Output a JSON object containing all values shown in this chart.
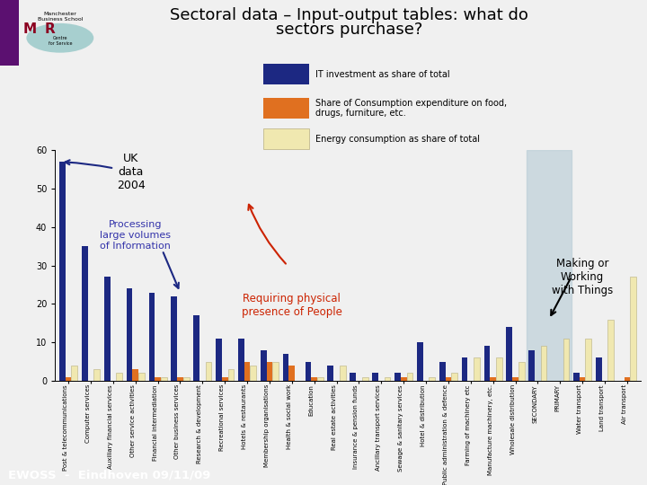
{
  "title_line1": "Sectoral data – Input-output tables: what do",
  "title_line2": "sectors purchase?",
  "categories": [
    "Post & telecommunications",
    "Computer services",
    "Auxiliary financial services",
    "Other service activities",
    "Financial intermediation",
    "Other business services",
    "Research & development",
    "Recreational services",
    "Hotels & restaurants",
    "Membership organisations",
    "Health & social work",
    "Education",
    "Real estate activities",
    "Insurance & pension funds",
    "Ancillary transport services",
    "Sewage & sanitary services",
    "Hotel & distribution",
    "Public administration & defence",
    "Farming of machinery etc",
    "Manufacture machinery, etc.",
    "Wholesale distribution",
    "SECONDARY",
    "PRIMARY",
    "Water transport",
    "Land transport",
    "Air transport"
  ],
  "it_investment": [
    57,
    35,
    27,
    24,
    23,
    22,
    17,
    11,
    11,
    8,
    7,
    5,
    4,
    2,
    2,
    2,
    10,
    5,
    6,
    9,
    14,
    8,
    0,
    2,
    6,
    0
  ],
  "consumption": [
    1,
    0,
    0,
    3,
    1,
    1,
    0,
    1,
    5,
    5,
    4,
    1,
    0,
    0,
    0,
    1,
    0,
    1,
    0,
    1,
    1,
    0,
    0,
    1,
    0,
    1
  ],
  "energy": [
    4,
    3,
    2,
    2,
    1,
    1,
    5,
    3,
    4,
    5,
    0,
    1,
    4,
    1,
    1,
    2,
    1,
    2,
    6,
    6,
    5,
    9,
    11,
    11,
    16,
    27
  ],
  "color_it": "#1c2882",
  "color_cons": "#e07020",
  "color_energy": "#f0e8b0",
  "color_energy_edge": "#b8b080",
  "color_sec_bg": "#bdd0d8",
  "color_bg": "#f0f0f0",
  "color_plot_bg": "#f0f0f0",
  "footer_text": "EWOSS  -  Eindhoven 09/11/09",
  "footer_bg": "#5b1070",
  "ylim_max": 60,
  "yticks": [
    0,
    10,
    20,
    30,
    40,
    50,
    60
  ],
  "bar_width": 0.27,
  "legend_it": "IT investment as share of total",
  "legend_cons": "Share of Consumption expenditure on food,\ndrugs, furniture, etc.",
  "legend_eng": "Energy consumption as share of total",
  "ann_uk": "UK\ndata\n2004",
  "ann_processing": "Processing\nlarge volumes\nof Information",
  "ann_physical": "Requiring physical\npresence of People",
  "ann_making": "Making or\nWorking\nwith Things"
}
